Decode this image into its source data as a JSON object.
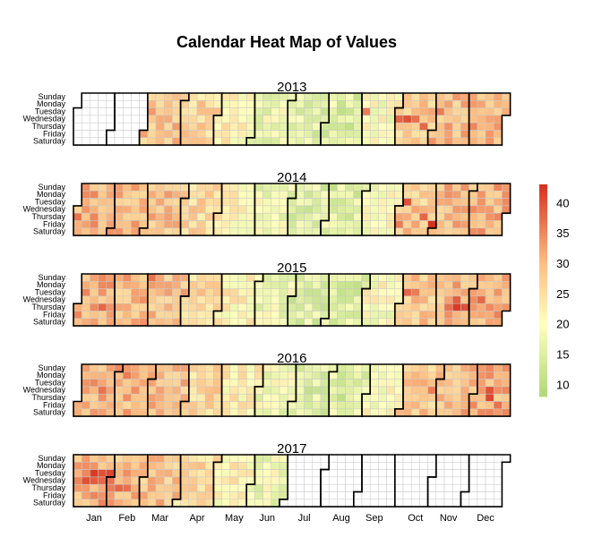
{
  "chart_data": {
    "type": "heatmap",
    "title": "Calendar Heat Map of Values",
    "years": [
      {
        "year": "2013",
        "data_start": "2013-03-01",
        "data_end": "2013-12-31"
      },
      {
        "year": "2014",
        "data_start": "2014-01-01",
        "data_end": "2014-12-31"
      },
      {
        "year": "2015",
        "data_start": "2015-01-01",
        "data_end": "2015-12-31"
      },
      {
        "year": "2016",
        "data_start": "2016-01-01",
        "data_end": "2016-12-31"
      },
      {
        "year": "2017",
        "data_start": "2017-01-01",
        "data_end": "2017-06-30"
      }
    ],
    "weekday_labels": [
      "Sunday",
      "Monday",
      "Tuesday",
      "Wednesday",
      "Thursday",
      "Friday",
      "Saturday"
    ],
    "month_labels": [
      "Jan",
      "Feb",
      "Mar",
      "Apr",
      "May",
      "Jun",
      "Jul",
      "Aug",
      "Sep",
      "Oct",
      "Nov",
      "Dec"
    ],
    "monthly_typical_values": [
      31,
      30,
      29,
      26,
      22,
      18,
      15,
      15,
      20,
      28,
      30,
      31
    ],
    "hot_days": [
      {
        "date": "2013-10-02",
        "value": 38
      },
      {
        "date": "2013-10-09",
        "value": 40
      },
      {
        "date": "2013-10-16",
        "value": 37
      },
      {
        "date": "2013-10-24",
        "value": 38
      },
      {
        "date": "2013-11-05",
        "value": 36
      },
      {
        "date": "2013-09-03",
        "value": 36
      },
      {
        "date": "2014-01-02",
        "value": 37
      },
      {
        "date": "2014-10-07",
        "value": 40
      },
      {
        "date": "2014-10-23",
        "value": 38
      },
      {
        "date": "2014-10-31",
        "value": 43
      },
      {
        "date": "2014-10-03",
        "value": 36
      },
      {
        "date": "2015-01-22",
        "value": 38
      },
      {
        "date": "2015-03-01",
        "value": 37
      },
      {
        "date": "2015-10-06",
        "value": 38
      },
      {
        "date": "2015-10-13",
        "value": 36
      },
      {
        "date": "2015-11-18",
        "value": 39
      },
      {
        "date": "2015-11-19",
        "value": 42
      },
      {
        "date": "2015-11-26",
        "value": 40
      },
      {
        "date": "2015-11-12",
        "value": 37
      },
      {
        "date": "2015-12-09",
        "value": 38
      },
      {
        "date": "2016-01-20",
        "value": 37
      },
      {
        "date": "2016-02-08",
        "value": 36
      },
      {
        "date": "2016-10-26",
        "value": 36
      },
      {
        "date": "2016-12-14",
        "value": 40
      },
      {
        "date": "2016-12-15",
        "value": 41
      },
      {
        "date": "2016-12-23",
        "value": 37
      },
      {
        "date": "2017-01-17",
        "value": 42
      },
      {
        "date": "2017-01-24",
        "value": 40
      },
      {
        "date": "2017-01-31",
        "value": 41
      },
      {
        "date": "2017-01-18",
        "value": 39
      },
      {
        "date": "2017-01-25",
        "value": 38
      },
      {
        "date": "2017-01-11",
        "value": 40
      },
      {
        "date": "2017-02-01",
        "value": 37
      },
      {
        "date": "2017-02-02",
        "value": 36
      },
      {
        "date": "2017-02-09",
        "value": 38
      },
      {
        "date": "2017-02-16",
        "value": 37
      }
    ],
    "colorbar": {
      "min": 8,
      "max": 43,
      "ticks": [
        10,
        15,
        20,
        25,
        30,
        35,
        40
      ],
      "stops": [
        {
          "value": 8,
          "color": "#b0d77a"
        },
        {
          "value": 20,
          "color": "#ffffbf"
        },
        {
          "value": 30,
          "color": "#fdbe84"
        },
        {
          "value": 43,
          "color": "#d7301f"
        }
      ]
    },
    "empty_cell_color": "#ffffff",
    "cell_border_color": "#c8c8c8",
    "month_border_color": "#000000"
  }
}
